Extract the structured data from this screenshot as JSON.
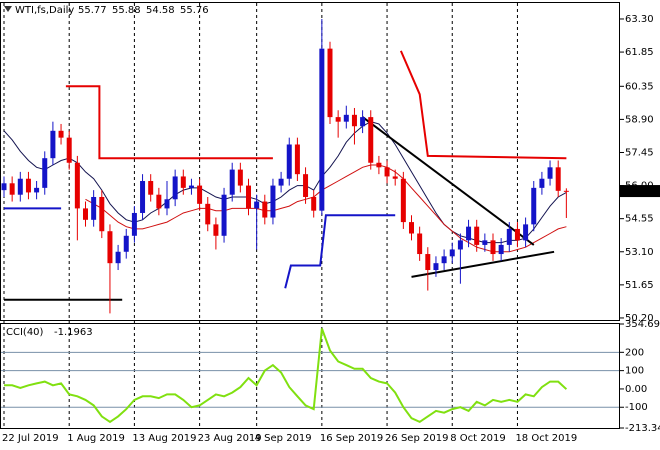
{
  "chart_data": [
    {
      "type": "candlestick",
      "title": "WTI,fs,Daily",
      "categories": [
        "22 Jul 2019",
        null,
        null,
        null,
        null,
        null,
        null,
        null,
        "1 Aug 2019",
        null,
        null,
        null,
        null,
        null,
        null,
        null,
        "13 Aug 2019",
        null,
        null,
        null,
        null,
        null,
        null,
        null,
        "23 Aug 2019",
        null,
        null,
        null,
        null,
        null,
        null,
        "4 Sep 2019",
        null,
        null,
        null,
        null,
        null,
        null,
        null,
        "16 Sep 2019",
        null,
        null,
        null,
        null,
        null,
        null,
        null,
        "26 Sep 2019",
        null,
        null,
        null,
        null,
        null,
        null,
        null,
        "8 Oct 2019",
        null,
        null,
        null,
        null,
        null,
        null,
        null,
        "18 Oct 2019",
        null,
        null,
        null,
        null,
        null,
        null
      ],
      "open": [
        55.8,
        56.1,
        55.6,
        56.3,
        55.7,
        55.9,
        57.2,
        58.4,
        58.1,
        57.0,
        55.0,
        54.5,
        55.5,
        54.0,
        52.6,
        53.1,
        53.8,
        54.8,
        56.2,
        55.6,
        55.0,
        55.4,
        56.4,
        55.9,
        56.0,
        55.2,
        54.3,
        53.8,
        55.6,
        56.7,
        56.0,
        55.0,
        55.3,
        54.6,
        56.0,
        56.3,
        57.8,
        56.5,
        55.5,
        54.9,
        62.0,
        59.0,
        58.8,
        59.1,
        58.6,
        59.0,
        57.0,
        56.8,
        56.4,
        56.3,
        54.4,
        53.9,
        53.0,
        52.3,
        52.6,
        52.9,
        53.2,
        53.6,
        54.2,
        53.4,
        53.6,
        53.0,
        53.4,
        54.1,
        53.6,
        54.3,
        55.9,
        56.3,
        56.8,
        55.77
      ],
      "high": [
        56.4,
        56.4,
        56.6,
        56.6,
        56.2,
        57.5,
        58.8,
        58.7,
        58.4,
        57.3,
        55.3,
        55.8,
        55.8,
        54.3,
        53.4,
        54.1,
        55.1,
        56.5,
        56.5,
        55.9,
        56.2,
        56.7,
        56.7,
        56.3,
        56.3,
        55.5,
        54.6,
        55.9,
        57.0,
        57.0,
        56.3,
        55.6,
        55.6,
        56.3,
        56.6,
        58.1,
        58.1,
        56.8,
        55.8,
        63.3,
        62.3,
        59.3,
        59.5,
        59.4,
        59.3,
        59.3,
        57.3,
        57.1,
        56.7,
        56.6,
        54.7,
        54.2,
        53.3,
        52.9,
        53.2,
        53.5,
        53.9,
        54.5,
        54.5,
        53.9,
        53.9,
        53.7,
        54.4,
        54.4,
        54.6,
        56.2,
        56.6,
        57.1,
        57.1,
        55.88
      ],
      "low": [
        55.5,
        55.3,
        55.3,
        55.4,
        55.4,
        55.6,
        56.9,
        57.8,
        56.7,
        53.6,
        54.2,
        54.2,
        53.7,
        50.4,
        52.3,
        52.8,
        53.5,
        54.5,
        55.3,
        54.7,
        54.7,
        55.1,
        55.6,
        55.6,
        54.9,
        54.0,
        53.2,
        53.5,
        55.3,
        55.7,
        54.7,
        53.2,
        54.3,
        54.3,
        55.7,
        56.0,
        56.2,
        55.2,
        54.6,
        54.7,
        58.7,
        58.1,
        58.5,
        57.8,
        58.3,
        56.7,
        56.5,
        56.1,
        56.0,
        54.1,
        53.6,
        52.7,
        51.4,
        52.0,
        52.3,
        52.6,
        51.7,
        53.3,
        53.1,
        53.1,
        52.7,
        52.7,
        53.1,
        53.3,
        53.3,
        54.0,
        55.6,
        56.0,
        55.5,
        54.58
      ],
      "close": [
        56.1,
        55.6,
        56.3,
        55.7,
        55.9,
        57.2,
        58.4,
        58.1,
        57.0,
        55.0,
        54.5,
        55.5,
        54.0,
        52.6,
        53.1,
        53.8,
        54.8,
        56.2,
        55.6,
        55.0,
        55.4,
        56.4,
        55.9,
        56.0,
        55.2,
        54.3,
        53.8,
        55.6,
        56.7,
        56.0,
        55.0,
        55.3,
        54.6,
        56.0,
        56.3,
        57.8,
        56.5,
        55.5,
        54.9,
        62.0,
        59.0,
        58.8,
        59.1,
        58.6,
        59.0,
        57.0,
        56.8,
        56.4,
        56.3,
        54.4,
        53.9,
        53.0,
        52.3,
        52.6,
        52.9,
        53.2,
        53.6,
        54.2,
        53.4,
        53.6,
        53.0,
        53.4,
        54.1,
        53.6,
        54.3,
        55.9,
        56.3,
        56.8,
        55.77,
        55.76
      ],
      "up_color": "#1414c8",
      "down_color": "#e60000",
      "overlays": [
        {
          "color": "#141450",
          "values": [
            58.4,
            58.0,
            57.5,
            57.1,
            56.8,
            56.7,
            56.9,
            57.1,
            57.2,
            57.0,
            56.6,
            56.3,
            55.8,
            55.2,
            54.8,
            54.5,
            54.4,
            54.5,
            54.8,
            55.0,
            55.3,
            55.6,
            55.8,
            55.9,
            55.9,
            55.7,
            55.5,
            55.4,
            55.5,
            55.5,
            55.5,
            55.4,
            55.2,
            55.3,
            55.5,
            55.8,
            56.0,
            56.0,
            55.8,
            56.4,
            56.8,
            57.3,
            57.9,
            58.3,
            58.6,
            58.8,
            58.7,
            58.3,
            57.8,
            57.2,
            56.6,
            56.0,
            55.4,
            54.8,
            54.3,
            54.0,
            53.8,
            53.7,
            53.6,
            53.5,
            53.5,
            53.5,
            53.6,
            53.6,
            53.7,
            54.1,
            54.6,
            55.1,
            55.5,
            55.7
          ]
        },
        {
          "color": "#d01010",
          "values": [
            null,
            null,
            null,
            null,
            null,
            null,
            null,
            null,
            null,
            null,
            55.4,
            55.2,
            55.0,
            54.7,
            54.4,
            54.2,
            54.1,
            54.1,
            54.2,
            54.3,
            54.4,
            54.6,
            54.8,
            54.9,
            55.0,
            55.0,
            54.9,
            54.9,
            55.0,
            55.0,
            55.0,
            55.0,
            54.9,
            54.9,
            55.0,
            55.1,
            55.3,
            55.4,
            55.5,
            55.8,
            56.0,
            56.2,
            56.4,
            56.6,
            56.8,
            56.9,
            56.9,
            56.8,
            56.6,
            56.3,
            55.9,
            55.5,
            55.1,
            54.7,
            54.3,
            54.0,
            53.7,
            53.5,
            53.3,
            53.2,
            53.1,
            53.1,
            53.1,
            53.2,
            53.3,
            53.5,
            53.7,
            53.9,
            54.1,
            54.2
          ]
        }
      ],
      "segments": [
        {
          "color": "#e60000",
          "points": [
            [
              7.6,
              60.35
            ],
            [
              11.7,
              60.35
            ],
            [
              11.7,
              57.2
            ],
            [
              33,
              57.2
            ]
          ]
        },
        {
          "color": "#e60000",
          "points": [
            [
              48.7,
              61.9
            ],
            [
              51,
              60.0
            ],
            [
              52,
              57.3
            ],
            [
              69,
              57.2
            ]
          ]
        },
        {
          "color": "#1414c8",
          "points": [
            [
              0,
              55.0
            ],
            [
              7,
              55.0
            ]
          ]
        },
        {
          "color": "#1414c8",
          "points": [
            [
              34.5,
              51.5
            ],
            [
              35.2,
              52.5
            ],
            [
              38.8,
              52.5
            ],
            [
              39.5,
              54.7
            ],
            [
              48,
              54.7
            ]
          ]
        },
        {
          "color": "#000000",
          "points": [
            [
              0,
              51.0
            ],
            [
              14.5,
              51.0
            ]
          ]
        },
        {
          "color": "#000000",
          "points": [
            [
              44,
              59.0
            ],
            [
              65,
              53.4
            ]
          ]
        },
        {
          "color": "#000000",
          "points": [
            [
              50,
              52.0
            ],
            [
              67.5,
              53.1
            ]
          ]
        }
      ],
      "ylim": [
        50.11,
        64.0
      ],
      "yticks": [
        {
          "value": 63.3,
          "label": "63.30"
        },
        {
          "value": 61.85,
          "label": "61.85"
        },
        {
          "value": 60.35,
          "label": "60.35"
        },
        {
          "value": 58.9,
          "label": "58.90"
        },
        {
          "value": 57.45,
          "label": "57.45"
        },
        {
          "value": 56.0,
          "label": "56.00"
        },
        {
          "value": 54.55,
          "label": "54.55"
        },
        {
          "value": 53.1,
          "label": "53.10"
        },
        {
          "value": 51.65,
          "label": "51.65"
        },
        {
          "value": 50.2,
          "label": "50.20"
        }
      ]
    },
    {
      "type": "line",
      "title": "CCI(40)",
      "color": "#80e010",
      "values": [
        20,
        20,
        5,
        20,
        30,
        40,
        20,
        30,
        -30,
        -40,
        -60,
        -90,
        -150,
        -180,
        -150,
        -110,
        -60,
        -40,
        -40,
        -50,
        -30,
        -30,
        -60,
        -100,
        -90,
        -60,
        -30,
        -40,
        -20,
        10,
        60,
        20,
        100,
        130,
        90,
        10,
        -40,
        -90,
        -110,
        330,
        210,
        150,
        130,
        110,
        110,
        60,
        40,
        30,
        -20,
        -100,
        -160,
        -180,
        -150,
        -120,
        -130,
        -110,
        -100,
        -120,
        -70,
        -90,
        -60,
        -70,
        -60,
        -70,
        -30,
        -40,
        10,
        40,
        40,
        -1.1963
      ],
      "ylim": [
        -213.34,
        354.6973
      ],
      "yticks": [
        354.6973,
        200,
        100,
        {
          "value": 0,
          "label": "0.00"
        },
        -100,
        {
          "value": -213.34,
          "label": "-213.340"
        }
      ],
      "levels": [
        200,
        100,
        -100
      ],
      "level_color": "#7890a8"
    }
  ]
}
